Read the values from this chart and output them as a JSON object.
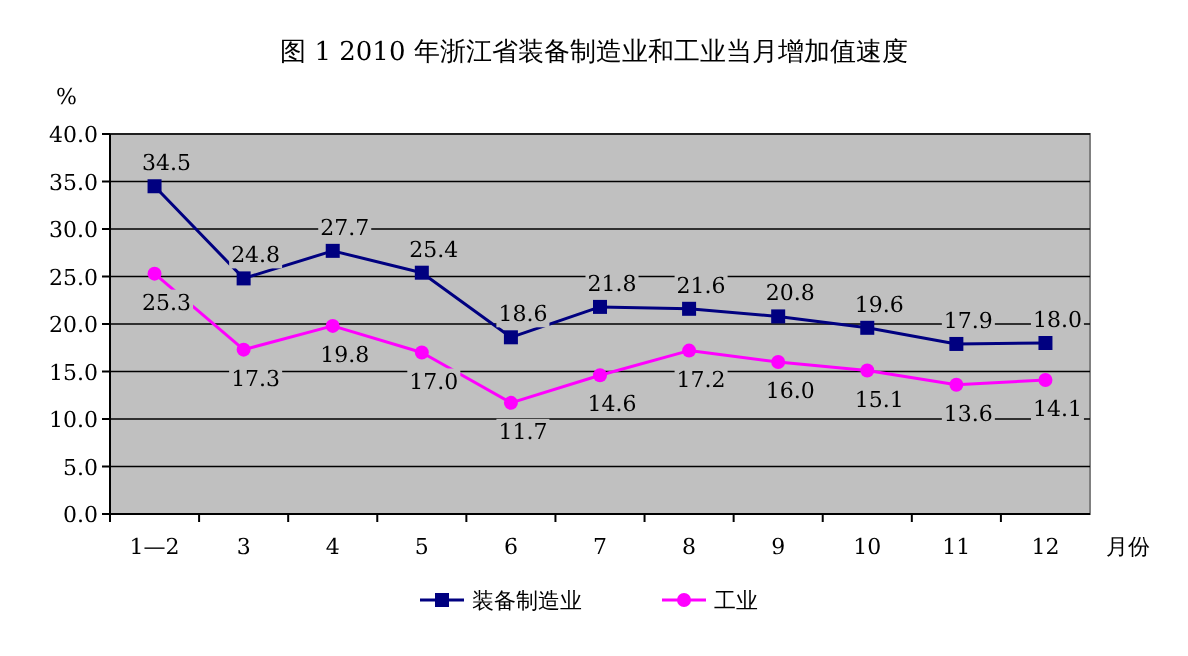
{
  "chart_data": {
    "type": "line",
    "title": "图 1   2010 年浙江省装备制造业和工业当月增加值速度",
    "ylabel": "%",
    "xlabel": "月份",
    "categories": [
      "1—2",
      "3",
      "4",
      "5",
      "6",
      "7",
      "8",
      "9",
      "10",
      "11",
      "12"
    ],
    "series": [
      {
        "name": "装备制造业",
        "color": "#000080",
        "marker": "square",
        "values": [
          34.5,
          24.8,
          27.7,
          25.4,
          18.6,
          21.8,
          21.6,
          20.8,
          19.6,
          17.9,
          18.0
        ],
        "value_labels": [
          "34.5",
          "24.8",
          "27.7",
          "25.4",
          "18.6",
          "21.8",
          "21.6",
          "20.8",
          "19.6",
          "17.9",
          "18.0"
        ]
      },
      {
        "name": "工业",
        "color": "#ff00ff",
        "marker": "circle",
        "values": [
          25.3,
          17.3,
          19.8,
          17.0,
          11.7,
          14.6,
          17.2,
          16.0,
          15.1,
          13.6,
          14.1
        ],
        "value_labels": [
          "25.3",
          "17.3",
          "19.8",
          "17.0",
          "11.7",
          "14.6",
          "17.2",
          "16.0",
          "15.1",
          "13.6",
          "14.1"
        ]
      }
    ],
    "ylim": [
      0,
      40
    ],
    "yticks": [
      {
        "value": 0,
        "label": "0.0"
      },
      {
        "value": 5,
        "label": "5.0"
      },
      {
        "value": 10,
        "label": "10.0"
      },
      {
        "value": 15,
        "label": "15.0"
      },
      {
        "value": 20,
        "label": "20.0"
      },
      {
        "value": 25,
        "label": "25.0"
      },
      {
        "value": 30,
        "label": "30.0"
      },
      {
        "value": 35,
        "label": "35.0"
      },
      {
        "value": 40,
        "label": "40.0"
      }
    ],
    "grid": "y",
    "legend": "bottom"
  }
}
